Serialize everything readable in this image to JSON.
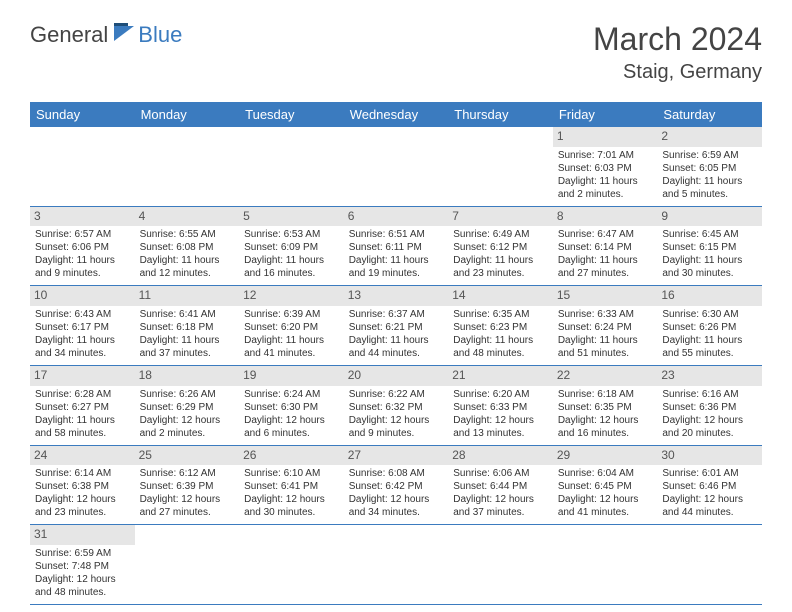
{
  "brand": {
    "part1": "General",
    "part2": "Blue"
  },
  "title": "March 2024",
  "location": "Staig, Germany",
  "colors": {
    "header_bg": "#3b7bbf",
    "header_text": "#ffffff",
    "day_bg": "#e6e6e6",
    "border": "#3b7bbf",
    "body_text": "#333333"
  },
  "weekdays": [
    "Sunday",
    "Monday",
    "Tuesday",
    "Wednesday",
    "Thursday",
    "Friday",
    "Saturday"
  ],
  "weeks": [
    [
      null,
      null,
      null,
      null,
      null,
      {
        "n": "1",
        "sr": "Sunrise: 7:01 AM",
        "ss": "Sunset: 6:03 PM",
        "d1": "Daylight: 11 hours",
        "d2": "and 2 minutes."
      },
      {
        "n": "2",
        "sr": "Sunrise: 6:59 AM",
        "ss": "Sunset: 6:05 PM",
        "d1": "Daylight: 11 hours",
        "d2": "and 5 minutes."
      }
    ],
    [
      {
        "n": "3",
        "sr": "Sunrise: 6:57 AM",
        "ss": "Sunset: 6:06 PM",
        "d1": "Daylight: 11 hours",
        "d2": "and 9 minutes."
      },
      {
        "n": "4",
        "sr": "Sunrise: 6:55 AM",
        "ss": "Sunset: 6:08 PM",
        "d1": "Daylight: 11 hours",
        "d2": "and 12 minutes."
      },
      {
        "n": "5",
        "sr": "Sunrise: 6:53 AM",
        "ss": "Sunset: 6:09 PM",
        "d1": "Daylight: 11 hours",
        "d2": "and 16 minutes."
      },
      {
        "n": "6",
        "sr": "Sunrise: 6:51 AM",
        "ss": "Sunset: 6:11 PM",
        "d1": "Daylight: 11 hours",
        "d2": "and 19 minutes."
      },
      {
        "n": "7",
        "sr": "Sunrise: 6:49 AM",
        "ss": "Sunset: 6:12 PM",
        "d1": "Daylight: 11 hours",
        "d2": "and 23 minutes."
      },
      {
        "n": "8",
        "sr": "Sunrise: 6:47 AM",
        "ss": "Sunset: 6:14 PM",
        "d1": "Daylight: 11 hours",
        "d2": "and 27 minutes."
      },
      {
        "n": "9",
        "sr": "Sunrise: 6:45 AM",
        "ss": "Sunset: 6:15 PM",
        "d1": "Daylight: 11 hours",
        "d2": "and 30 minutes."
      }
    ],
    [
      {
        "n": "10",
        "sr": "Sunrise: 6:43 AM",
        "ss": "Sunset: 6:17 PM",
        "d1": "Daylight: 11 hours",
        "d2": "and 34 minutes."
      },
      {
        "n": "11",
        "sr": "Sunrise: 6:41 AM",
        "ss": "Sunset: 6:18 PM",
        "d1": "Daylight: 11 hours",
        "d2": "and 37 minutes."
      },
      {
        "n": "12",
        "sr": "Sunrise: 6:39 AM",
        "ss": "Sunset: 6:20 PM",
        "d1": "Daylight: 11 hours",
        "d2": "and 41 minutes."
      },
      {
        "n": "13",
        "sr": "Sunrise: 6:37 AM",
        "ss": "Sunset: 6:21 PM",
        "d1": "Daylight: 11 hours",
        "d2": "and 44 minutes."
      },
      {
        "n": "14",
        "sr": "Sunrise: 6:35 AM",
        "ss": "Sunset: 6:23 PM",
        "d1": "Daylight: 11 hours",
        "d2": "and 48 minutes."
      },
      {
        "n": "15",
        "sr": "Sunrise: 6:33 AM",
        "ss": "Sunset: 6:24 PM",
        "d1": "Daylight: 11 hours",
        "d2": "and 51 minutes."
      },
      {
        "n": "16",
        "sr": "Sunrise: 6:30 AM",
        "ss": "Sunset: 6:26 PM",
        "d1": "Daylight: 11 hours",
        "d2": "and 55 minutes."
      }
    ],
    [
      {
        "n": "17",
        "sr": "Sunrise: 6:28 AM",
        "ss": "Sunset: 6:27 PM",
        "d1": "Daylight: 11 hours",
        "d2": "and 58 minutes."
      },
      {
        "n": "18",
        "sr": "Sunrise: 6:26 AM",
        "ss": "Sunset: 6:29 PM",
        "d1": "Daylight: 12 hours",
        "d2": "and 2 minutes."
      },
      {
        "n": "19",
        "sr": "Sunrise: 6:24 AM",
        "ss": "Sunset: 6:30 PM",
        "d1": "Daylight: 12 hours",
        "d2": "and 6 minutes."
      },
      {
        "n": "20",
        "sr": "Sunrise: 6:22 AM",
        "ss": "Sunset: 6:32 PM",
        "d1": "Daylight: 12 hours",
        "d2": "and 9 minutes."
      },
      {
        "n": "21",
        "sr": "Sunrise: 6:20 AM",
        "ss": "Sunset: 6:33 PM",
        "d1": "Daylight: 12 hours",
        "d2": "and 13 minutes."
      },
      {
        "n": "22",
        "sr": "Sunrise: 6:18 AM",
        "ss": "Sunset: 6:35 PM",
        "d1": "Daylight: 12 hours",
        "d2": "and 16 minutes."
      },
      {
        "n": "23",
        "sr": "Sunrise: 6:16 AM",
        "ss": "Sunset: 6:36 PM",
        "d1": "Daylight: 12 hours",
        "d2": "and 20 minutes."
      }
    ],
    [
      {
        "n": "24",
        "sr": "Sunrise: 6:14 AM",
        "ss": "Sunset: 6:38 PM",
        "d1": "Daylight: 12 hours",
        "d2": "and 23 minutes."
      },
      {
        "n": "25",
        "sr": "Sunrise: 6:12 AM",
        "ss": "Sunset: 6:39 PM",
        "d1": "Daylight: 12 hours",
        "d2": "and 27 minutes."
      },
      {
        "n": "26",
        "sr": "Sunrise: 6:10 AM",
        "ss": "Sunset: 6:41 PM",
        "d1": "Daylight: 12 hours",
        "d2": "and 30 minutes."
      },
      {
        "n": "27",
        "sr": "Sunrise: 6:08 AM",
        "ss": "Sunset: 6:42 PM",
        "d1": "Daylight: 12 hours",
        "d2": "and 34 minutes."
      },
      {
        "n": "28",
        "sr": "Sunrise: 6:06 AM",
        "ss": "Sunset: 6:44 PM",
        "d1": "Daylight: 12 hours",
        "d2": "and 37 minutes."
      },
      {
        "n": "29",
        "sr": "Sunrise: 6:04 AM",
        "ss": "Sunset: 6:45 PM",
        "d1": "Daylight: 12 hours",
        "d2": "and 41 minutes."
      },
      {
        "n": "30",
        "sr": "Sunrise: 6:01 AM",
        "ss": "Sunset: 6:46 PM",
        "d1": "Daylight: 12 hours",
        "d2": "and 44 minutes."
      }
    ],
    [
      {
        "n": "31",
        "sr": "Sunrise: 6:59 AM",
        "ss": "Sunset: 7:48 PM",
        "d1": "Daylight: 12 hours",
        "d2": "and 48 minutes."
      },
      null,
      null,
      null,
      null,
      null,
      null
    ]
  ]
}
